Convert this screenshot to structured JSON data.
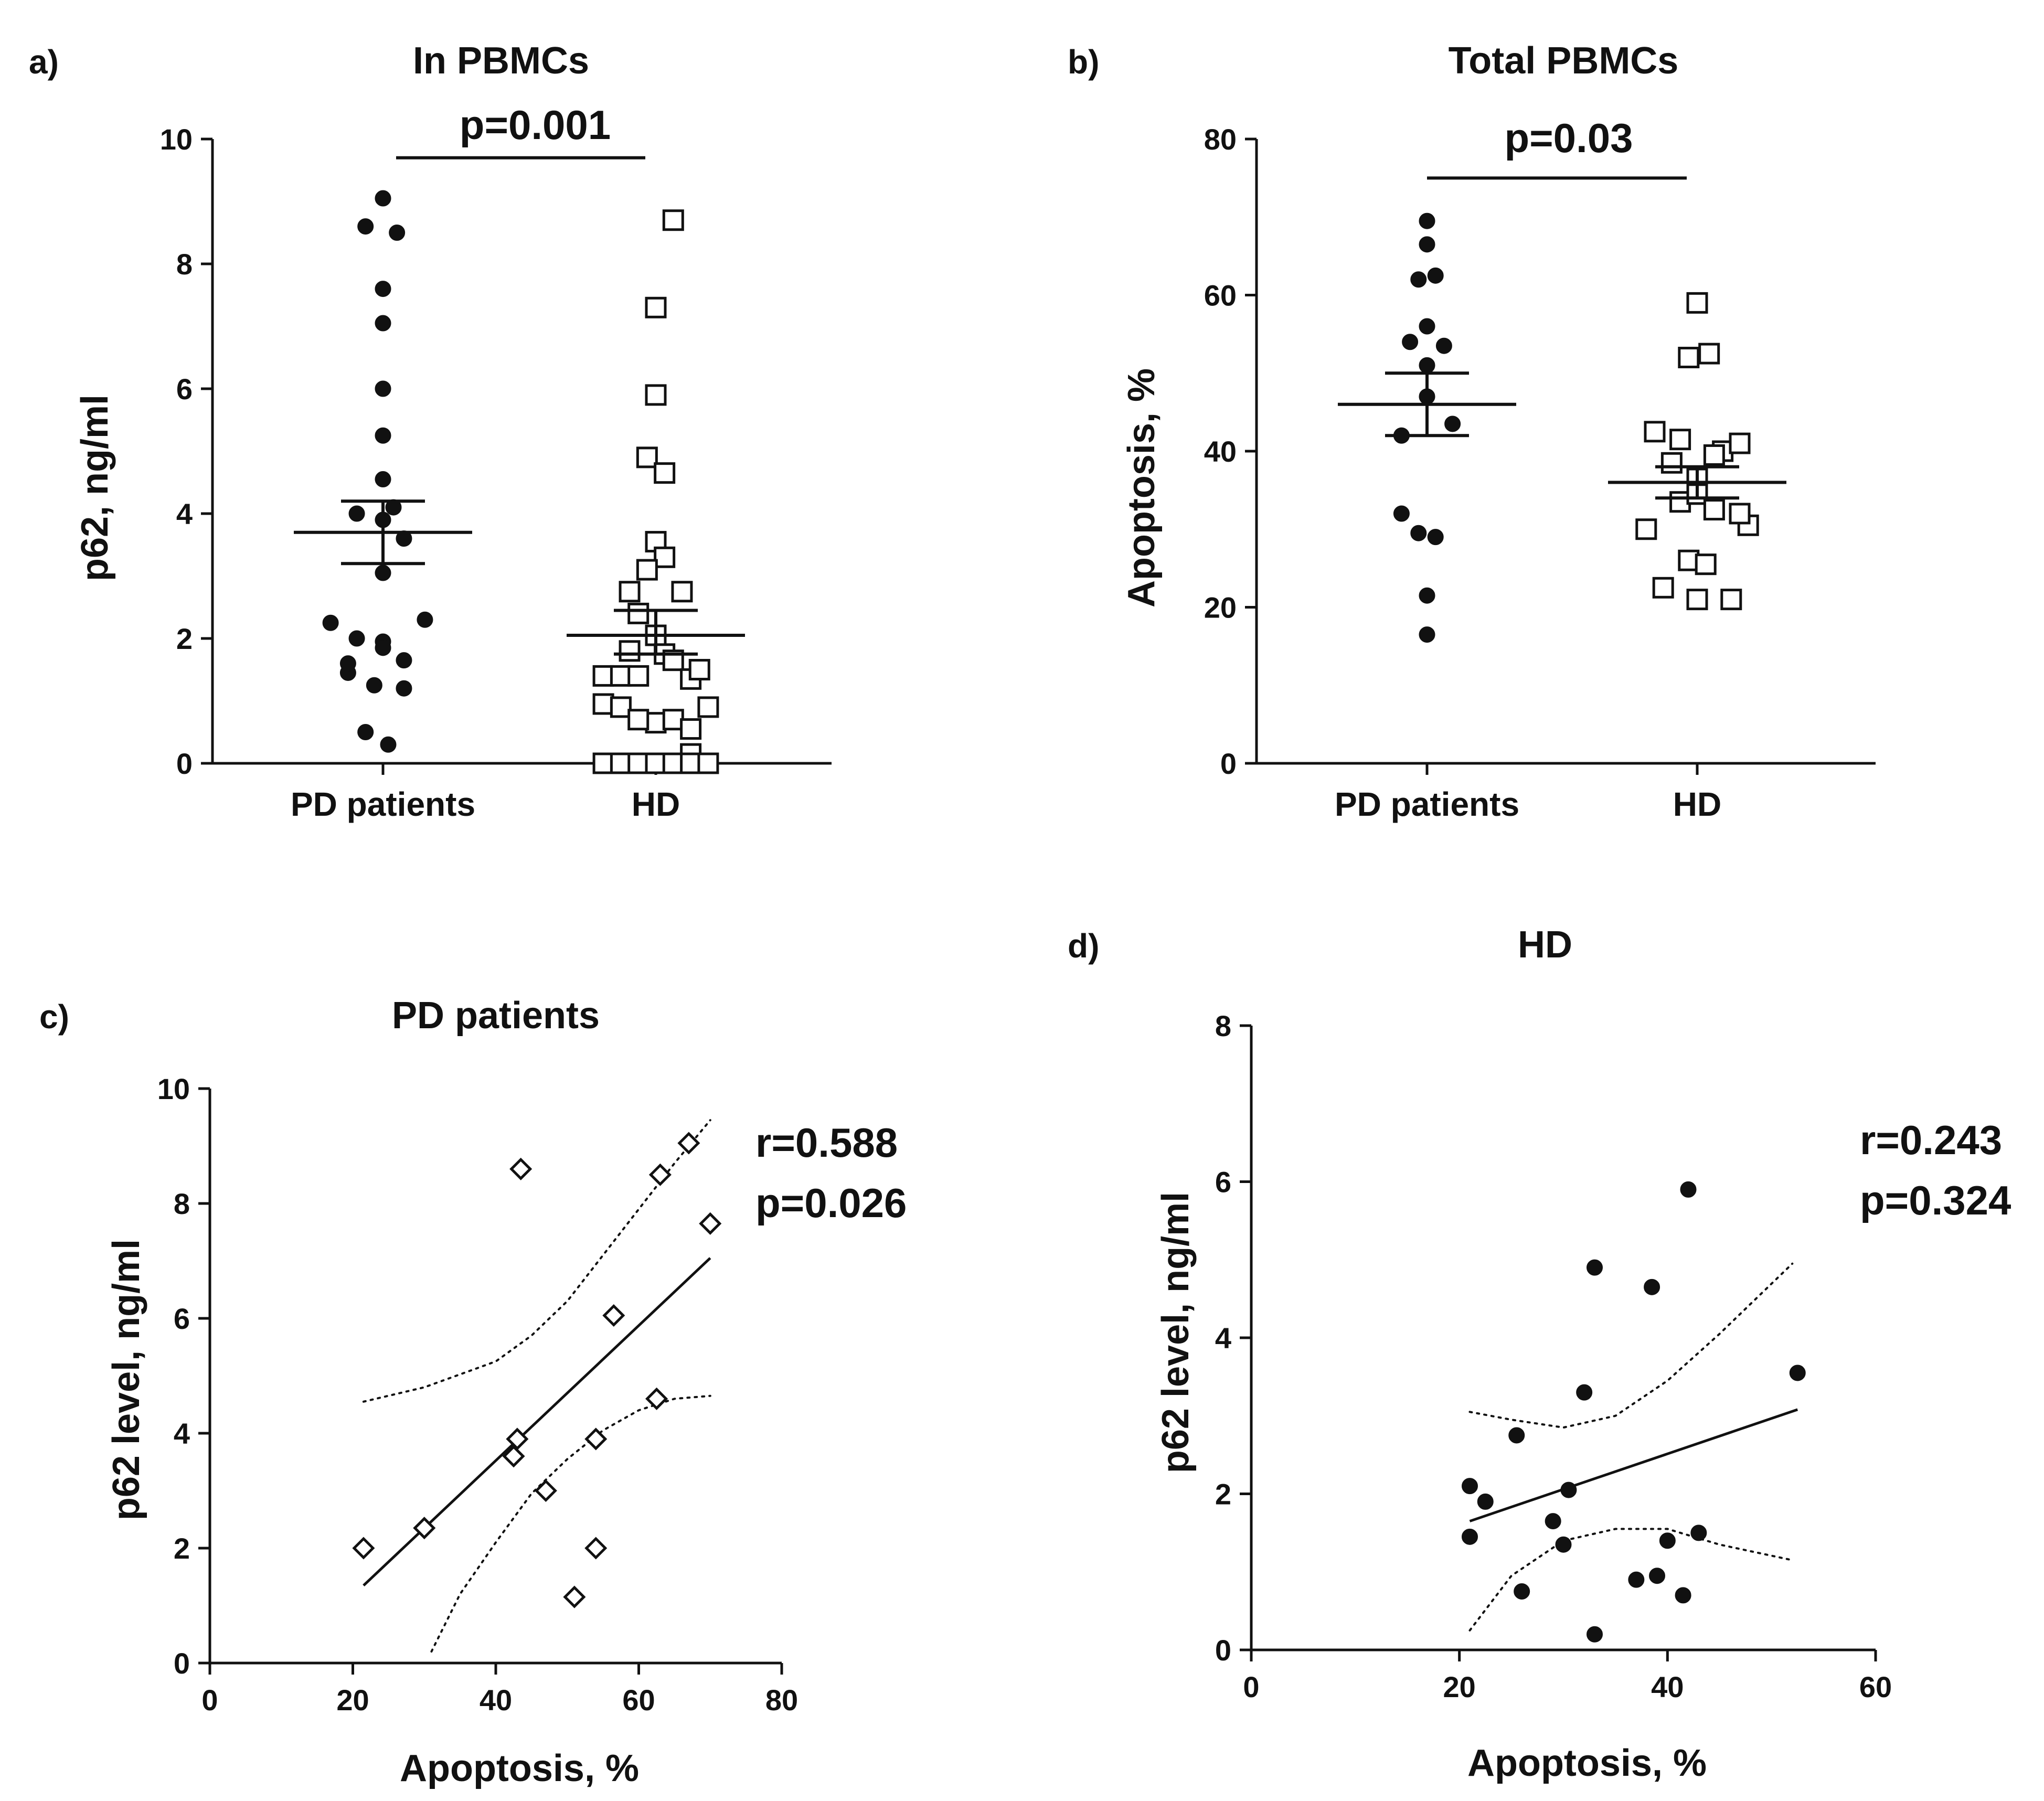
{
  "chart_data": [
    {
      "panel": "a)",
      "type": "scatter",
      "title": "In PBMCs",
      "ylabel": "p62, ng/ml",
      "xlabel": "",
      "ylim": [
        0,
        10
      ],
      "yticks": [
        0,
        2,
        4,
        6,
        8,
        10
      ],
      "categories": [
        "PD patients",
        "HD"
      ],
      "significance": {
        "label": "p=0.001",
        "y": 9.7
      },
      "series": [
        {
          "name": "PD patients",
          "marker": "filled-circle",
          "points": [
            [
              0.0,
              9.05
            ],
            [
              -0.1,
              8.6
            ],
            [
              0.08,
              8.5
            ],
            [
              0.0,
              7.6
            ],
            [
              0.0,
              7.05
            ],
            [
              0.0,
              6.0
            ],
            [
              0.0,
              5.25
            ],
            [
              0.0,
              4.55
            ],
            [
              -0.15,
              4.0
            ],
            [
              0.06,
              4.1
            ],
            [
              0.0,
              3.9
            ],
            [
              0.12,
              3.6
            ],
            [
              0.0,
              3.05
            ],
            [
              -0.3,
              2.25
            ],
            [
              0.24,
              2.3
            ],
            [
              -0.15,
              2.0
            ],
            [
              0.0,
              1.95
            ],
            [
              0.0,
              1.85
            ],
            [
              0.12,
              1.65
            ],
            [
              -0.2,
              1.45
            ],
            [
              -0.2,
              1.6
            ],
            [
              -0.05,
              1.25
            ],
            [
              0.12,
              1.2
            ],
            [
              -0.1,
              0.5
            ],
            [
              0.03,
              0.3
            ]
          ],
          "mean": 3.7,
          "sem_low": 3.2,
          "sem_high": 4.2
        },
        {
          "name": "HD",
          "marker": "hollow-square",
          "points": [
            [
              0.1,
              8.7
            ],
            [
              0.0,
              7.3
            ],
            [
              0.0,
              5.9
            ],
            [
              -0.05,
              4.9
            ],
            [
              0.05,
              4.65
            ],
            [
              0.0,
              3.55
            ],
            [
              0.05,
              3.3
            ],
            [
              -0.05,
              3.1
            ],
            [
              -0.15,
              2.75
            ],
            [
              0.15,
              2.75
            ],
            [
              -0.1,
              2.4
            ],
            [
              0.0,
              2.05
            ],
            [
              -0.15,
              1.8
            ],
            [
              0.05,
              1.75
            ],
            [
              -0.3,
              1.4
            ],
            [
              -0.2,
              1.4
            ],
            [
              -0.1,
              1.4
            ],
            [
              0.1,
              1.65
            ],
            [
              0.2,
              1.35
            ],
            [
              0.25,
              1.5
            ],
            [
              -0.3,
              0.95
            ],
            [
              -0.2,
              0.9
            ],
            [
              0.0,
              0.65
            ],
            [
              0.1,
              0.7
            ],
            [
              0.2,
              0.55
            ],
            [
              0.3,
              0.9
            ],
            [
              -0.1,
              0.7
            ],
            [
              0.2,
              0.15
            ],
            [
              -0.3,
              0.0
            ],
            [
              -0.2,
              0.0
            ],
            [
              -0.1,
              0.0
            ],
            [
              0.0,
              0.0
            ],
            [
              0.1,
              0.0
            ],
            [
              0.2,
              0.0
            ],
            [
              0.3,
              0.0
            ]
          ],
          "mean": 2.05,
          "sem_low": 1.75,
          "sem_high": 2.45
        }
      ]
    },
    {
      "panel": "b)",
      "type": "scatter",
      "title": "Total PBMCs",
      "ylabel": "Apoptosis, %",
      "xlabel": "",
      "ylim": [
        0,
        80
      ],
      "yticks": [
        0,
        20,
        40,
        60,
        80
      ],
      "categories": [
        "PD patients",
        "HD"
      ],
      "significance": {
        "label": "p=0.03",
        "y": 75
      },
      "series": [
        {
          "name": "PD patients",
          "marker": "filled-circle",
          "points": [
            [
              0.0,
              69.5
            ],
            [
              0.0,
              66.5
            ],
            [
              -0.05,
              62.0
            ],
            [
              0.05,
              62.5
            ],
            [
              0.0,
              56.0
            ],
            [
              -0.1,
              54.0
            ],
            [
              0.1,
              53.5
            ],
            [
              0.0,
              51.0
            ],
            [
              0.0,
              47.0
            ],
            [
              -0.15,
              42.0
            ],
            [
              0.15,
              43.5
            ],
            [
              -0.15,
              32.0
            ],
            [
              -0.05,
              29.5
            ],
            [
              0.05,
              29.0
            ],
            [
              0.0,
              21.5
            ],
            [
              0.0,
              16.5
            ]
          ],
          "mean": 46.0,
          "sem_low": 42.0,
          "sem_high": 50.0
        },
        {
          "name": "HD",
          "marker": "hollow-square",
          "points": [
            [
              0.0,
              59.0
            ],
            [
              -0.05,
              52.0
            ],
            [
              0.07,
              52.5
            ],
            [
              -0.25,
              42.5
            ],
            [
              -0.1,
              41.5
            ],
            [
              0.15,
              40.0
            ],
            [
              0.25,
              41.0
            ],
            [
              -0.15,
              38.5
            ],
            [
              0.0,
              36.5
            ],
            [
              0.1,
              39.5
            ],
            [
              -0.1,
              33.5
            ],
            [
              0.0,
              34.5
            ],
            [
              0.1,
              32.5
            ],
            [
              -0.3,
              30.0
            ],
            [
              0.3,
              30.5
            ],
            [
              -0.05,
              26.0
            ],
            [
              0.05,
              25.5
            ],
            [
              -0.2,
              22.5
            ],
            [
              0.0,
              21.0
            ],
            [
              0.2,
              21.0
            ],
            [
              0.25,
              32.0
            ]
          ],
          "mean": 36.0,
          "sem_low": 34.0,
          "sem_high": 38.0
        }
      ]
    },
    {
      "panel": "c)",
      "type": "scatter",
      "title": "PD patients",
      "xlabel": "Apoptosis, %",
      "ylabel": "p62 level, ng/ml",
      "xlim": [
        0,
        80
      ],
      "ylim": [
        0,
        10
      ],
      "xticks": [
        0,
        20,
        40,
        60,
        80
      ],
      "yticks": [
        0,
        2,
        4,
        6,
        8,
        10
      ],
      "annotation": [
        "r=0.588",
        "p=0.026"
      ],
      "series": [
        {
          "name": "PD patients",
          "marker": "hollow-diamond",
          "points": [
            [
              21.5,
              2.0
            ],
            [
              30.0,
              2.35
            ],
            [
              42.5,
              3.6
            ],
            [
              43.0,
              3.9
            ],
            [
              43.5,
              8.6
            ],
            [
              47.0,
              3.0
            ],
            [
              51.0,
              1.15
            ],
            [
              54.0,
              3.9
            ],
            [
              54.0,
              2.0
            ],
            [
              56.5,
              6.05
            ],
            [
              62.5,
              4.6
            ],
            [
              63.0,
              8.5
            ],
            [
              67.0,
              9.05
            ],
            [
              70.0,
              7.65
            ]
          ]
        }
      ],
      "regression": {
        "x": [
          21.5,
          70.0
        ],
        "y": [
          1.35,
          7.05
        ]
      },
      "ci_upper": [
        [
          21.5,
          4.55
        ],
        [
          30,
          4.8
        ],
        [
          40,
          5.25
        ],
        [
          45,
          5.7
        ],
        [
          50,
          6.3
        ],
        [
          55,
          7.1
        ],
        [
          60,
          7.9
        ],
        [
          65,
          8.7
        ],
        [
          70,
          9.45
        ]
      ],
      "ci_lower": [
        [
          31,
          0.2
        ],
        [
          35,
          1.2
        ],
        [
          40,
          2.1
        ],
        [
          45,
          2.95
        ],
        [
          50,
          3.55
        ],
        [
          55,
          4.05
        ],
        [
          60,
          4.4
        ],
        [
          65,
          4.6
        ],
        [
          70,
          4.65
        ]
      ]
    },
    {
      "panel": "d)",
      "type": "scatter",
      "title": "HD",
      "xlabel": "Apoptosis, %",
      "ylabel": "p62 level, ng/ml",
      "xlim": [
        0,
        60
      ],
      "ylim": [
        0,
        8
      ],
      "xticks": [
        0,
        20,
        40,
        60
      ],
      "yticks": [
        0,
        2,
        4,
        6,
        8
      ],
      "annotation": [
        "r=0.243",
        "p=0.324"
      ],
      "series": [
        {
          "name": "HD",
          "marker": "filled-circle",
          "points": [
            [
              21.0,
              1.45
            ],
            [
              21.0,
              2.1
            ],
            [
              22.5,
              1.9
            ],
            [
              25.5,
              2.75
            ],
            [
              26.0,
              0.75
            ],
            [
              29.0,
              1.65
            ],
            [
              30.0,
              1.35
            ],
            [
              30.5,
              2.05
            ],
            [
              32.0,
              3.3
            ],
            [
              33.0,
              4.9
            ],
            [
              33.0,
              0.2
            ],
            [
              37.0,
              0.9
            ],
            [
              38.5,
              4.65
            ],
            [
              39.0,
              0.95
            ],
            [
              40.0,
              1.4
            ],
            [
              41.5,
              0.7
            ],
            [
              42.0,
              5.9
            ],
            [
              43.0,
              1.5
            ],
            [
              52.5,
              3.55
            ]
          ]
        }
      ],
      "regression": {
        "x": [
          21.0,
          52.5
        ],
        "y": [
          1.65,
          3.08
        ]
      },
      "ci_upper": [
        [
          21,
          3.05
        ],
        [
          25,
          2.95
        ],
        [
          30,
          2.85
        ],
        [
          35,
          3.0
        ],
        [
          40,
          3.45
        ],
        [
          45,
          4.05
        ],
        [
          52,
          4.95
        ]
      ],
      "ci_lower": [
        [
          21,
          0.25
        ],
        [
          25,
          0.95
        ],
        [
          30,
          1.4
        ],
        [
          35,
          1.55
        ],
        [
          40,
          1.55
        ],
        [
          45,
          1.35
        ],
        [
          52,
          1.15
        ]
      ]
    }
  ]
}
